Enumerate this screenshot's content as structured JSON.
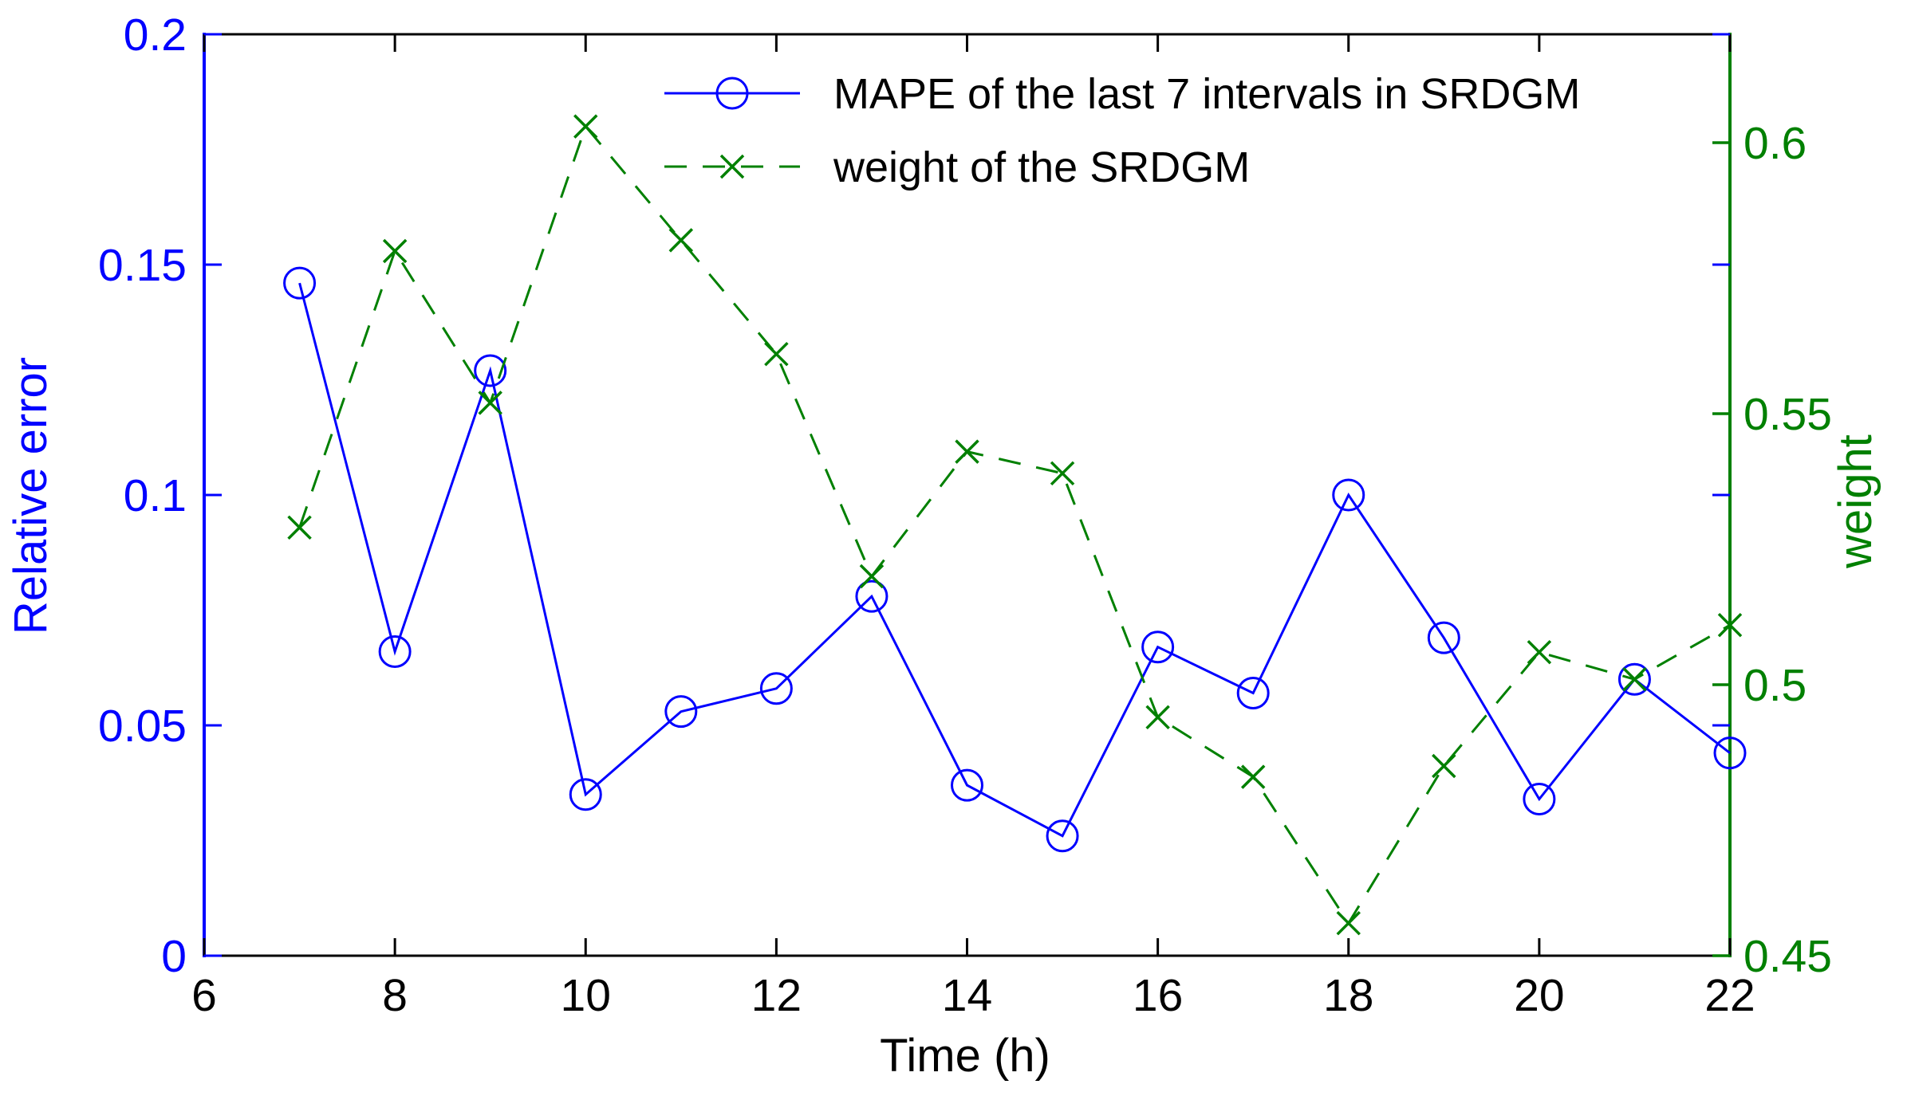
{
  "chart_data": {
    "type": "line",
    "x": [
      7,
      8,
      9,
      10,
      11,
      12,
      13,
      14,
      15,
      16,
      17,
      18,
      19,
      20,
      21,
      22
    ],
    "series": [
      {
        "name": "MAPE of the last 7 intervals in SRDGM",
        "axis": "left",
        "color": "#0000ff",
        "marker": "circle",
        "linestyle": "solid",
        "values": [
          0.146,
          0.066,
          0.127,
          0.035,
          0.053,
          0.058,
          0.078,
          0.037,
          0.026,
          0.067,
          0.057,
          0.1,
          0.069,
          0.034,
          0.06,
          0.044
        ]
      },
      {
        "name": "weight of the SRDGM",
        "axis": "right",
        "color": "#008000",
        "marker": "x",
        "linestyle": "dashed",
        "values": [
          0.529,
          0.58,
          0.552,
          0.603,
          0.582,
          0.561,
          0.52,
          0.543,
          0.539,
          0.494,
          0.483,
          0.456,
          0.485,
          0.506,
          0.501,
          0.511
        ]
      }
    ],
    "xlabel": "Time (h)",
    "xlim": [
      6,
      22
    ],
    "x_ticks": [
      6,
      8,
      10,
      12,
      14,
      16,
      18,
      20,
      22
    ],
    "x_tick_labels": [
      "6",
      "8",
      "10",
      "12",
      "14",
      "16",
      "18",
      "20",
      "22"
    ],
    "left_axis": {
      "label": "Relative error",
      "color": "#0000ff",
      "lim": [
        0,
        0.2
      ],
      "ticks": [
        0,
        0.05,
        0.1,
        0.15,
        0.2
      ],
      "tick_labels": [
        "0",
        "0.05",
        "0.1",
        "0.15",
        "0.2"
      ]
    },
    "right_axis": {
      "label": "weight",
      "color": "#008000",
      "lim": [
        0.45,
        0.62
      ],
      "ticks": [
        0.45,
        0.5,
        0.55,
        0.6
      ],
      "tick_labels": [
        "0.45",
        "0.5",
        "0.55",
        "0.6"
      ]
    },
    "legend": {
      "position": "upper-center",
      "border": "none"
    },
    "grid": false,
    "text_color": "#000000",
    "background": "#ffffff"
  }
}
